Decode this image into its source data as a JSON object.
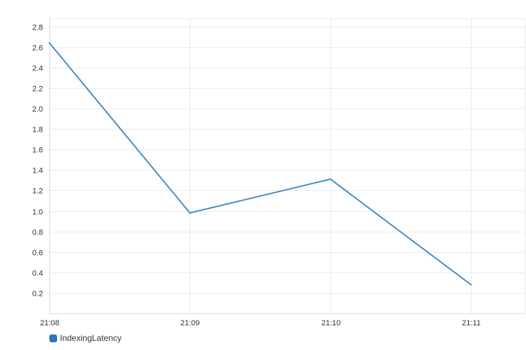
{
  "chart_data": {
    "type": "line",
    "title": "",
    "xlabel": "",
    "ylabel": "",
    "categories": [
      "21:08",
      "21:09",
      "21:10",
      "21:11"
    ],
    "series": [
      {
        "name": "IndexingLatency",
        "values": [
          2.64,
          0.98,
          1.31,
          0.28
        ],
        "color": "#4a8ec6"
      }
    ],
    "y_ticks": [
      "0.2",
      "0.4",
      "0.6",
      "0.8",
      "1.0",
      "1.2",
      "1.4",
      "1.6",
      "1.8",
      "2.0",
      "2.2",
      "2.4",
      "2.6",
      "2.8"
    ],
    "ylim": [
      0.0,
      2.88
    ],
    "grid": true,
    "legend": "bottom-left"
  }
}
